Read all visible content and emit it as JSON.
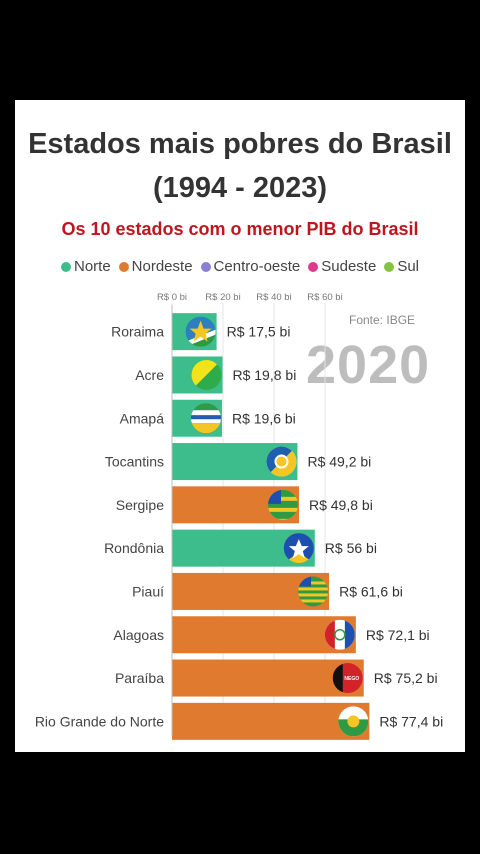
{
  "chart_data": {
    "type": "bar",
    "title": "Estados mais pobres do Brasil",
    "title_line2": "(1994 - 2023)",
    "subtitle": "Os 10 estados com o menor PIB do Brasil",
    "source": "Fonte: IBGE",
    "year": "2020",
    "legend": [
      {
        "name": "Norte",
        "color": "#3dbd8c"
      },
      {
        "name": "Nordeste",
        "color": "#e07a2e"
      },
      {
        "name": "Centro-oeste",
        "color": "#8a7fd6"
      },
      {
        "name": "Sudeste",
        "color": "#e0398a"
      },
      {
        "name": "Sul",
        "color": "#86c440"
      }
    ],
    "xticks": [
      "R$ 0 bi",
      "R$ 20 bi",
      "R$ 40 bi",
      "R$ 60 bi"
    ],
    "xtick_values": [
      0,
      20,
      40,
      60
    ],
    "categories": [
      "Roraima",
      "Acre",
      "Amapá",
      "Tocantins",
      "Sergipe",
      "Rondônia",
      "Piauí",
      "Alagoas",
      "Paraíba",
      "Rio Grande do Norte"
    ],
    "values": [
      17.5,
      19.8,
      19.6,
      49.2,
      49.8,
      56,
      61.6,
      72.1,
      75.2,
      77.4
    ],
    "value_labels": [
      "R$ 17,5 bi",
      "R$ 19,8 bi",
      "R$ 19,6 bi",
      "R$ 49,2 bi",
      "R$ 49,8 bi",
      "R$ 56 bi",
      "R$ 61,6 bi",
      "R$ 72,1 bi",
      "R$ 75,2 bi",
      "R$ 77,4 bi"
    ],
    "regions": [
      "Norte",
      "Norte",
      "Norte",
      "Norte",
      "Nordeste",
      "Norte",
      "Nordeste",
      "Nordeste",
      "Nordeste",
      "Nordeste"
    ],
    "flag_icons": [
      "roraima-flag-icon",
      "acre-flag-icon",
      "amapa-flag-icon",
      "tocantins-flag-icon",
      "sergipe-flag-icon",
      "rondonia-flag-icon",
      "piaui-flag-icon",
      "alagoas-flag-icon",
      "paraiba-flag-icon",
      "rio-grande-do-norte-flag-icon"
    ],
    "flag_texts": {
      "paraiba": "NEGO"
    }
  }
}
